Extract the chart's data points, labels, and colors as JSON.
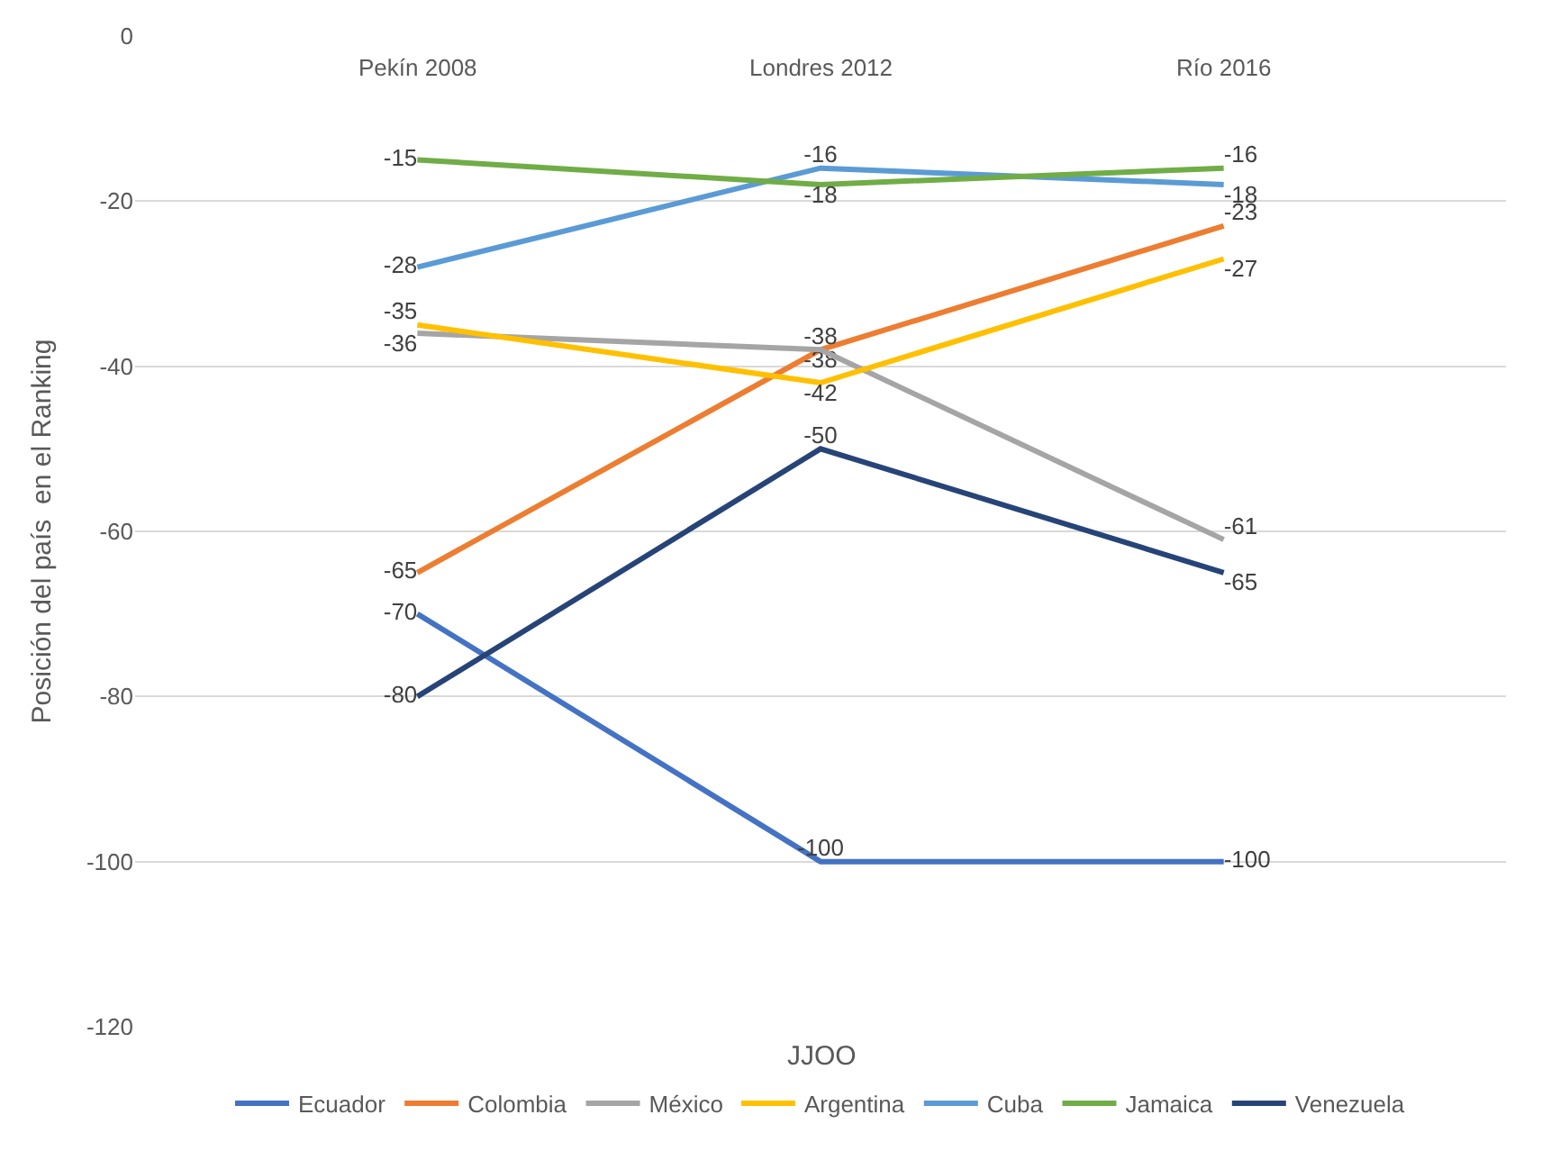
{
  "chart_data": {
    "type": "line",
    "xlabel": "JJOO",
    "ylabel": "Posición del país  en el Ranking",
    "categories": [
      "Pekín 2008",
      "Londres 2012",
      "Río 2016"
    ],
    "series": [
      {
        "name": "Ecuador",
        "color": "#4472c4",
        "values": [
          -70,
          -100,
          -100
        ]
      },
      {
        "name": "Colombia",
        "color": "#ed7d31",
        "values": [
          -65,
          -38,
          -23
        ]
      },
      {
        "name": "México",
        "color": "#a5a5a5",
        "values": [
          -36,
          -38,
          -61
        ]
      },
      {
        "name": "Argentina",
        "color": "#ffc000",
        "values": [
          -35,
          -42,
          -27
        ]
      },
      {
        "name": "Cuba",
        "color": "#5b9bd5",
        "values": [
          -28,
          -16,
          -18
        ]
      },
      {
        "name": "Jamaica",
        "color": "#70ad47",
        "values": [
          -15,
          -18,
          -16
        ]
      },
      {
        "name": "Venezuela",
        "color": "#264478",
        "values": [
          -80,
          -50,
          -65
        ]
      }
    ],
    "ylim": [
      -120,
      0
    ],
    "yticks": [
      0,
      -20,
      -40,
      -60,
      -80,
      -100,
      -120
    ],
    "grid": "y",
    "legend": "bottom",
    "marker": "none",
    "line_style": "solid",
    "data_labels": true
  }
}
